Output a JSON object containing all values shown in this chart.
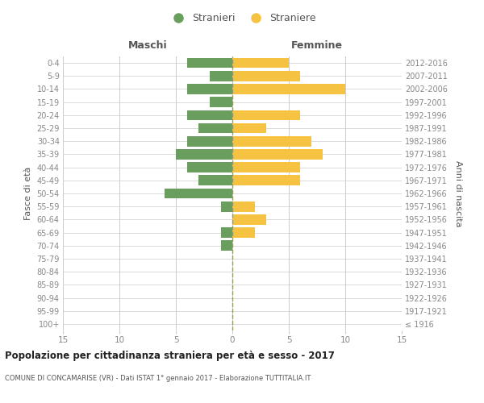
{
  "age_groups": [
    "100+",
    "95-99",
    "90-94",
    "85-89",
    "80-84",
    "75-79",
    "70-74",
    "65-69",
    "60-64",
    "55-59",
    "50-54",
    "45-49",
    "40-44",
    "35-39",
    "30-34",
    "25-29",
    "20-24",
    "15-19",
    "10-14",
    "5-9",
    "0-4"
  ],
  "birth_years": [
    "≤ 1916",
    "1917-1921",
    "1922-1926",
    "1927-1931",
    "1932-1936",
    "1937-1941",
    "1942-1946",
    "1947-1951",
    "1952-1956",
    "1957-1961",
    "1962-1966",
    "1967-1971",
    "1972-1976",
    "1977-1981",
    "1982-1986",
    "1987-1991",
    "1992-1996",
    "1997-2001",
    "2002-2006",
    "2007-2011",
    "2012-2016"
  ],
  "males": [
    0,
    0,
    0,
    0,
    0,
    0,
    1,
    1,
    0,
    1,
    6,
    3,
    4,
    5,
    4,
    3,
    4,
    2,
    4,
    2,
    4
  ],
  "females": [
    0,
    0,
    0,
    0,
    0,
    0,
    0,
    2,
    3,
    2,
    0,
    6,
    6,
    8,
    7,
    3,
    6,
    0,
    10,
    6,
    5
  ],
  "male_color": "#6a9e5e",
  "female_color": "#f5c242",
  "background_color": "#ffffff",
  "grid_color": "#cccccc",
  "dashed_line_color": "#999966",
  "xlim": 15,
  "title": "Popolazione per cittadinanza straniera per età e sesso - 2017",
  "subtitle": "COMUNE DI CONCAMARISE (VR) - Dati ISTAT 1° gennaio 2017 - Elaborazione TUTTITALIA.IT",
  "xlabel_left": "Maschi",
  "xlabel_right": "Femmine",
  "ylabel_left": "Fasce di età",
  "ylabel_right": "Anni di nascita",
  "legend_males": "Stranieri",
  "legend_females": "Straniere",
  "tick_color": "#888888",
  "label_color": "#555555"
}
